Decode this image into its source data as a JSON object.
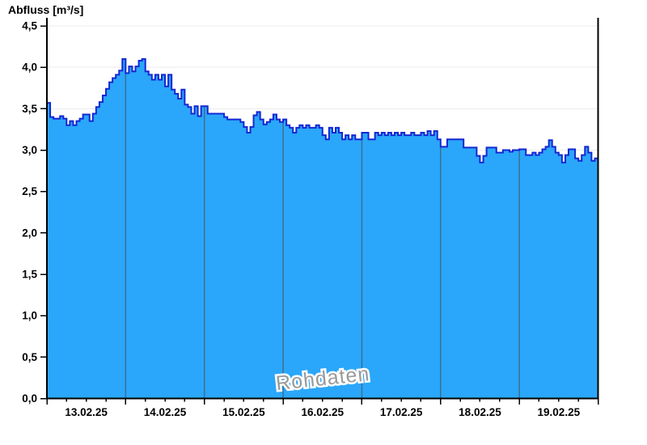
{
  "chart_data": {
    "type": "area",
    "step_mode": true,
    "title": "Abfluss [m³/s]",
    "ylabel": "Abfluss [m³/s]",
    "xlabel": "",
    "watermark": "Rohdaten",
    "ylim": [
      0,
      4.5
    ],
    "y_tick_step": 0.5,
    "y_tick_values": [
      4.5,
      4.0,
      3.5,
      3.0,
      2.5,
      2.0,
      1.5,
      1.0,
      0.5,
      0.0
    ],
    "y_tick_labels": [
      "4,5",
      "4,0",
      "3,5",
      "3,0",
      "2,5",
      "2,0",
      "1,5",
      "1,0",
      "0,5",
      "0,0"
    ],
    "x_tick_labels": [
      "13.02.25",
      "14.02.25",
      "15.02.25",
      "16.02.25",
      "17.02.25",
      "18.02.25",
      "19.02.25"
    ],
    "x_range_days": 7,
    "points_per_day": 24,
    "x_minor_ticks_per_day": 4,
    "grid": {
      "horizontal": true,
      "vertical_day_boundaries": true
    },
    "legend": null,
    "series": [
      {
        "name": "Abfluss",
        "unit": "m³/s",
        "values": [
          3.57,
          3.4,
          3.38,
          3.38,
          3.41,
          3.38,
          3.3,
          3.35,
          3.3,
          3.35,
          3.38,
          3.43,
          3.43,
          3.35,
          3.44,
          3.52,
          3.58,
          3.66,
          3.74,
          3.82,
          3.87,
          3.91,
          3.96,
          4.1,
          3.93,
          4.01,
          3.95,
          4.01,
          4.08,
          4.1,
          3.95,
          3.91,
          3.85,
          3.91,
          3.85,
          3.91,
          3.77,
          3.91,
          3.73,
          3.68,
          3.62,
          3.73,
          3.55,
          3.52,
          3.44,
          3.53,
          3.41,
          3.53,
          3.53,
          3.44,
          3.44,
          3.44,
          3.44,
          3.44,
          3.4,
          3.37,
          3.37,
          3.37,
          3.37,
          3.34,
          3.28,
          3.21,
          3.28,
          3.42,
          3.46,
          3.37,
          3.31,
          3.34,
          3.37,
          3.43,
          3.37,
          3.34,
          3.37,
          3.3,
          3.27,
          3.21,
          3.27,
          3.3,
          3.27,
          3.3,
          3.27,
          3.27,
          3.3,
          3.27,
          3.18,
          3.13,
          3.27,
          3.21,
          3.27,
          3.21,
          3.13,
          3.18,
          3.13,
          3.18,
          3.13,
          3.13,
          3.21,
          3.21,
          3.13,
          3.13,
          3.21,
          3.18,
          3.21,
          3.18,
          3.21,
          3.18,
          3.21,
          3.18,
          3.21,
          3.18,
          3.18,
          3.21,
          3.18,
          3.18,
          3.21,
          3.18,
          3.23,
          3.18,
          3.23,
          3.13,
          3.04,
          3.04,
          3.13,
          3.13,
          3.13,
          3.13,
          3.13,
          3.03,
          3.03,
          3.03,
          3.03,
          2.93,
          2.85,
          2.93,
          3.03,
          3.03,
          3.03,
          2.97,
          2.97,
          3.0,
          3.0,
          2.98,
          3.0,
          3.0,
          3.01,
          3.01,
          2.94,
          2.94,
          2.97,
          2.94,
          2.97,
          3.01,
          3.04,
          3.12,
          3.04,
          2.97,
          2.94,
          2.85,
          2.94,
          3.01,
          3.01,
          2.9,
          2.87,
          2.94,
          3.04,
          2.97,
          2.87,
          2.9
        ]
      }
    ],
    "colors": {
      "fill": "#2aa7fa",
      "outline": "#1527d2",
      "day_gridline": "#3b6f95",
      "value_gridline": "#ebebeb",
      "axis": "#000000",
      "watermark": "#9a9a9a",
      "watermark_halo": "#ffffff",
      "background": "#ffffff",
      "label": "#000000"
    }
  }
}
